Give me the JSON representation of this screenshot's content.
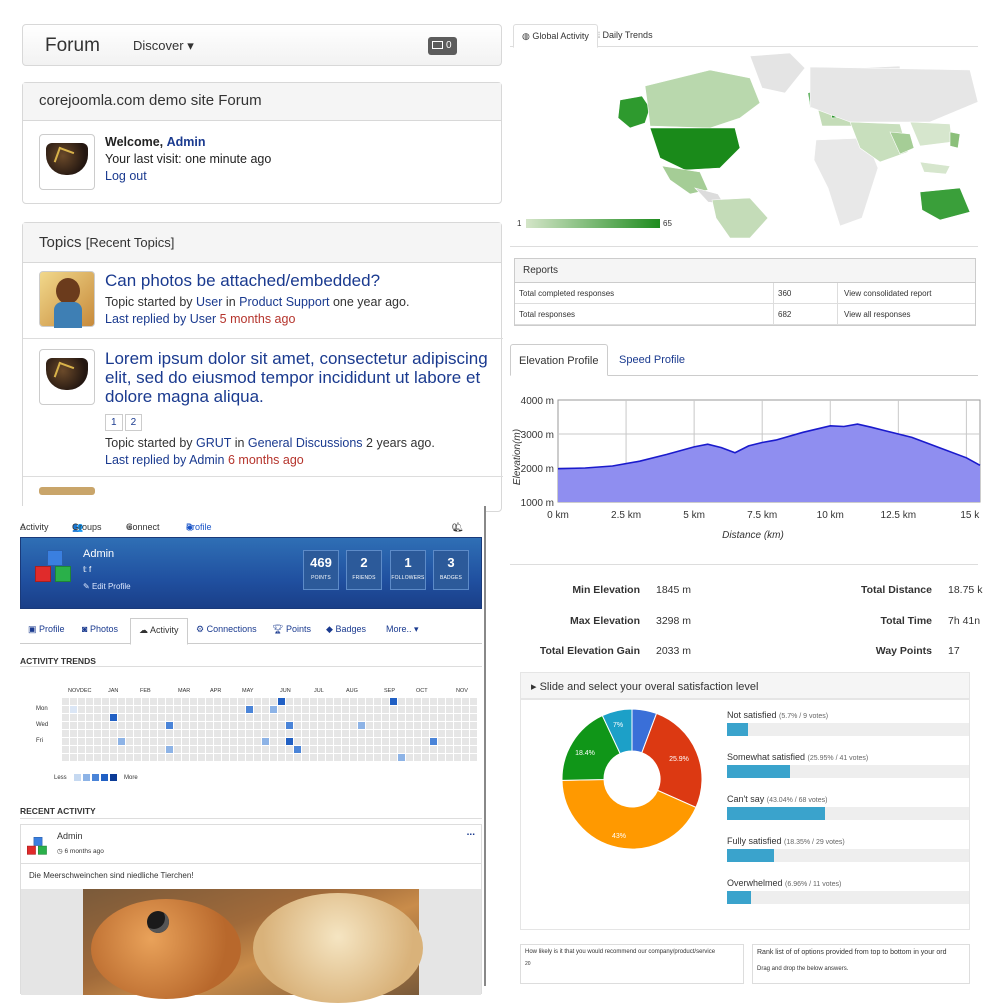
{
  "forum": {
    "brand": "Forum",
    "discover": "Discover",
    "mail_count": "0",
    "site_title": "corejoomla.com demo site Forum",
    "welcome_prefix": "Welcome,",
    "welcome_user": "Admin",
    "last_visit": "Your last visit: one minute ago",
    "logout": "Log out",
    "topics_heading": "Topics",
    "topics_sub": "[Recent Topics]",
    "topics": [
      {
        "title": "Can photos be attached/embedded?",
        "started_by_label": "Topic started by",
        "author": "User",
        "in_label": "in",
        "category": "Product Support",
        "age": "one year ago.",
        "replied_label": "Last replied by User",
        "replied_age": "5 months ago"
      },
      {
        "title": "Lorem ipsum dolor sit amet, consectetur adipiscing elit, sed do eiusmod tempor incididunt ut labore et dolore magna aliqua.",
        "pages": [
          "1",
          "2"
        ],
        "started_by_label": "Topic started by",
        "author": "GRUT",
        "in_label": "in",
        "category": "General Discussions",
        "age": "2 years ago.",
        "replied_label": "Last replied by Admin",
        "replied_age": "6 months ago"
      }
    ]
  },
  "worldmap": {
    "tabs": [
      "Global Activity",
      "Daily Trends"
    ],
    "legend_min": "1",
    "legend_max": "65",
    "reports_title": "Reports",
    "reports": [
      {
        "label": "Total completed responses",
        "value": "360",
        "link": "View consolidated report"
      },
      {
        "label": "Total responses",
        "value": "682",
        "link": "View all responses"
      }
    ]
  },
  "elevation": {
    "tabs": [
      "Elevation Profile",
      "Speed Profile"
    ],
    "ylabel": "Elevation(m)",
    "xlabel": "Distance (km)",
    "y_ticks": [
      "4000 m",
      "3000 m",
      "2000 m",
      "1000 m"
    ],
    "x_ticks": [
      "0 km",
      "2.5 km",
      "5 km",
      "7.5 km",
      "10 km",
      "12.5 km",
      "15 k"
    ],
    "stats": [
      {
        "label": "Min Elevation",
        "value": "1845 m"
      },
      {
        "label": "Max Elevation",
        "value": "3298 m"
      },
      {
        "label": "Total Elevation Gain",
        "value": "2033 m"
      },
      {
        "label": "Total Distance",
        "value": "18.75 k"
      },
      {
        "label": "Total Time",
        "value": "7h 41n"
      },
      {
        "label": "Way Points",
        "value": "17"
      }
    ]
  },
  "chart_data": {
    "type": "area",
    "title": "",
    "xlabel": "Distance (km)",
    "ylabel": "Elevation(m)",
    "xlim": [
      0,
      15.5
    ],
    "ylim": [
      1000,
      4000
    ],
    "x": [
      0,
      1,
      2,
      3,
      4,
      5,
      5.5,
      6,
      6.5,
      7,
      7.5,
      8,
      9,
      10,
      10.5,
      11,
      11.5,
      12,
      13,
      14,
      15,
      15.5
    ],
    "y": [
      1980,
      2000,
      2060,
      2200,
      2400,
      2620,
      2700,
      2600,
      2450,
      2650,
      2750,
      2820,
      3050,
      3240,
      3220,
      3290,
      3200,
      3100,
      2900,
      2600,
      2300,
      2080
    ],
    "grid": true
  },
  "profile": {
    "nav": [
      "Activity",
      "Groups",
      "Connect",
      "Profile"
    ],
    "notif_count": "0",
    "name": "Admin",
    "edit_profile": "Edit Profile",
    "stats": [
      {
        "value": "469",
        "label": "POINTS"
      },
      {
        "value": "2",
        "label": "FRIENDS"
      },
      {
        "value": "1",
        "label": "FOLLOWERS"
      },
      {
        "value": "3",
        "label": "BADGES"
      }
    ],
    "tabs": [
      "Profile",
      "Photos",
      "Activity",
      "Connections",
      "Points",
      "Badges",
      "More.."
    ],
    "trends_heading": "ACTIVITY TRENDS",
    "months": [
      "NOVDEC",
      "JAN",
      "FEB",
      "MAR",
      "APR",
      "MAY",
      "JUN",
      "JUL",
      "AUG",
      "SEP",
      "OCT",
      "NOV"
    ],
    "days": [
      "Mon",
      "Wed",
      "Fri"
    ],
    "less": "Less",
    "more": "More",
    "recent_heading": "RECENT ACTIVITY",
    "post_author": "Admin",
    "post_time": "6 months ago",
    "post_text": "Die Meerschweinchen sind niedliche Tierchen!",
    "post_menu": "..."
  },
  "survey": {
    "heading": "Slide and select your overal satisfaction level",
    "options": [
      {
        "label": "Not satisfied",
        "detail": "(5.7% / 9 votes)",
        "pct": 5.7,
        "color": "#3a6fd8"
      },
      {
        "label": "Somewhat satisfied",
        "detail": "(25.95% / 41 votes)",
        "pct": 25.95,
        "color": "#dc3912"
      },
      {
        "label": "Can't say",
        "detail": "(43.04% / 68 votes)",
        "pct": 43.04,
        "color": "#ff9900"
      },
      {
        "label": "Fully satisfied",
        "detail": "(18.35% / 29 votes)",
        "pct": 18.35,
        "color": "#109618"
      },
      {
        "label": "Overwhelmed",
        "detail": "(6.96% / 11 votes)",
        "pct": 6.96,
        "color": "#1ca0c8"
      }
    ],
    "pie_labels": [
      "7%",
      "25.9%",
      "43%",
      "18.4%"
    ],
    "q_recommend": "How likely is it that you would recommend our company/product/service",
    "q_rank": "Rank list of of options provided from top to bottom in your ord",
    "q_rank_hint": "Drag and drop the below answers.",
    "axis_label": "20"
  }
}
